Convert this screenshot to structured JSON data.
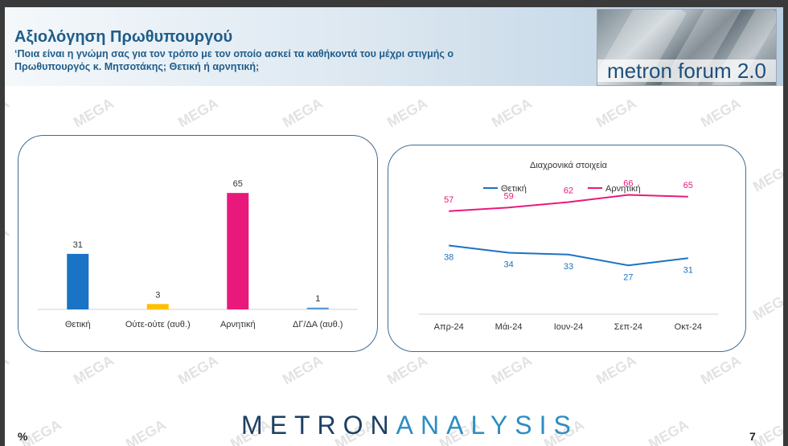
{
  "header": {
    "title": "Αξιολόγηση Πρωθυπουργού",
    "subtitle": "‘Ποια είναι η γνώμη σας για τον τρόπο με τον οποίο ασκεί τα καθήκοντά του μέχρι στιγμής ο Πρωθυπουργός κ. Μητσοτάκης; Θετική ή αρνητική;",
    "logo_text": "metron forum 2.0"
  },
  "watermark_text": "MEGA",
  "footer": {
    "brand_part1": "METRON",
    "brand_part2": "ANALYSIS",
    "percent": "%",
    "page_number": "7"
  },
  "colors": {
    "title_blue": "#1f5d8a",
    "positive": "#1a73c4",
    "neutral": "#ffc000",
    "negative": "#e9197b",
    "dk": "#5b9bd5",
    "panel_border": "#3f6c93"
  },
  "chart_data": [
    {
      "type": "bar",
      "categories": [
        "Θετική",
        "Ούτε-ούτε (αυθ.)",
        "Αρνητική",
        "ΔΓ/ΔΑ (αυθ.)"
      ],
      "values": [
        31,
        3,
        65,
        1
      ],
      "bar_colors": [
        "#1a73c4",
        "#ffc000",
        "#e9197b",
        "#5b9bd5"
      ],
      "title": "",
      "xlabel": "",
      "ylabel": "",
      "ylim": [
        0,
        70
      ],
      "grid": false
    },
    {
      "type": "line",
      "title": "Διαχρονικά στοιχεία",
      "categories": [
        "Απρ-24",
        "Μάι-24",
        "Ιουν-24",
        "Σεπ-24",
        "Οκτ-24"
      ],
      "series": [
        {
          "name": "Θετική",
          "values": [
            38,
            34,
            33,
            27,
            31
          ],
          "color": "#1a73c4"
        },
        {
          "name": "Αρνητική",
          "values": [
            57,
            59,
            62,
            66,
            65
          ],
          "color": "#e9197b"
        }
      ],
      "legend": "top",
      "ylim": [
        0,
        80
      ],
      "grid": false
    }
  ]
}
